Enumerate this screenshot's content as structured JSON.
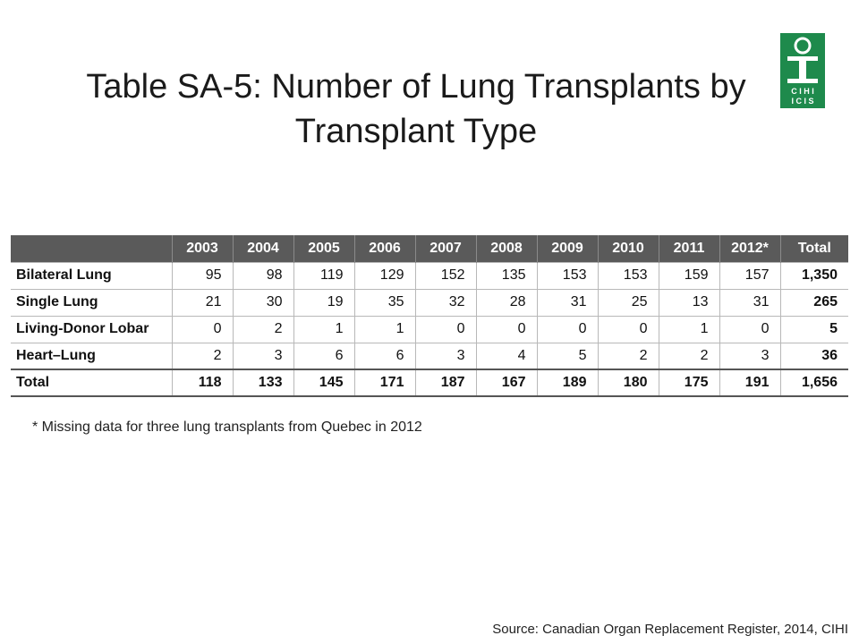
{
  "slide": {
    "title": "Table SA-5: Number of Lung Transplants by Transplant Type",
    "footnote": "* Missing data for three lung transplants from Quebec in 2012",
    "source": "Source: Canadian Organ Replacement Register, 2014, CIHI",
    "logo_lines": [
      "C I H I",
      "I C I S"
    ],
    "logo_color": "#1e8a4c"
  },
  "chart_data": {
    "type": "table",
    "title": "Table SA-5: Number of Lung Transplants by Transplant Type",
    "columns": [
      "",
      "2003",
      "2004",
      "2005",
      "2006",
      "2007",
      "2008",
      "2009",
      "2010",
      "2011",
      "2012*",
      "Total"
    ],
    "rows": [
      {
        "label": "Bilateral Lung",
        "values": [
          "95",
          "98",
          "119",
          "129",
          "152",
          "135",
          "153",
          "153",
          "159",
          "157"
        ],
        "total": "1,350"
      },
      {
        "label": "Single Lung",
        "values": [
          "21",
          "30",
          "19",
          "35",
          "32",
          "28",
          "31",
          "25",
          "13",
          "31"
        ],
        "total": "265"
      },
      {
        "label": "Living-Donor Lobar",
        "values": [
          "0",
          "2",
          "1",
          "1",
          "0",
          "0",
          "0",
          "0",
          "1",
          "0"
        ],
        "total": "5"
      },
      {
        "label": "Heart–Lung",
        "values": [
          "2",
          "3",
          "6",
          "6",
          "3",
          "4",
          "5",
          "2",
          "2",
          "3"
        ],
        "total": "36"
      },
      {
        "label": "Total",
        "values": [
          "118",
          "133",
          "145",
          "171",
          "187",
          "167",
          "189",
          "180",
          "175",
          "191"
        ],
        "total": "1,656"
      }
    ],
    "header_color": "#5a5a5a"
  }
}
